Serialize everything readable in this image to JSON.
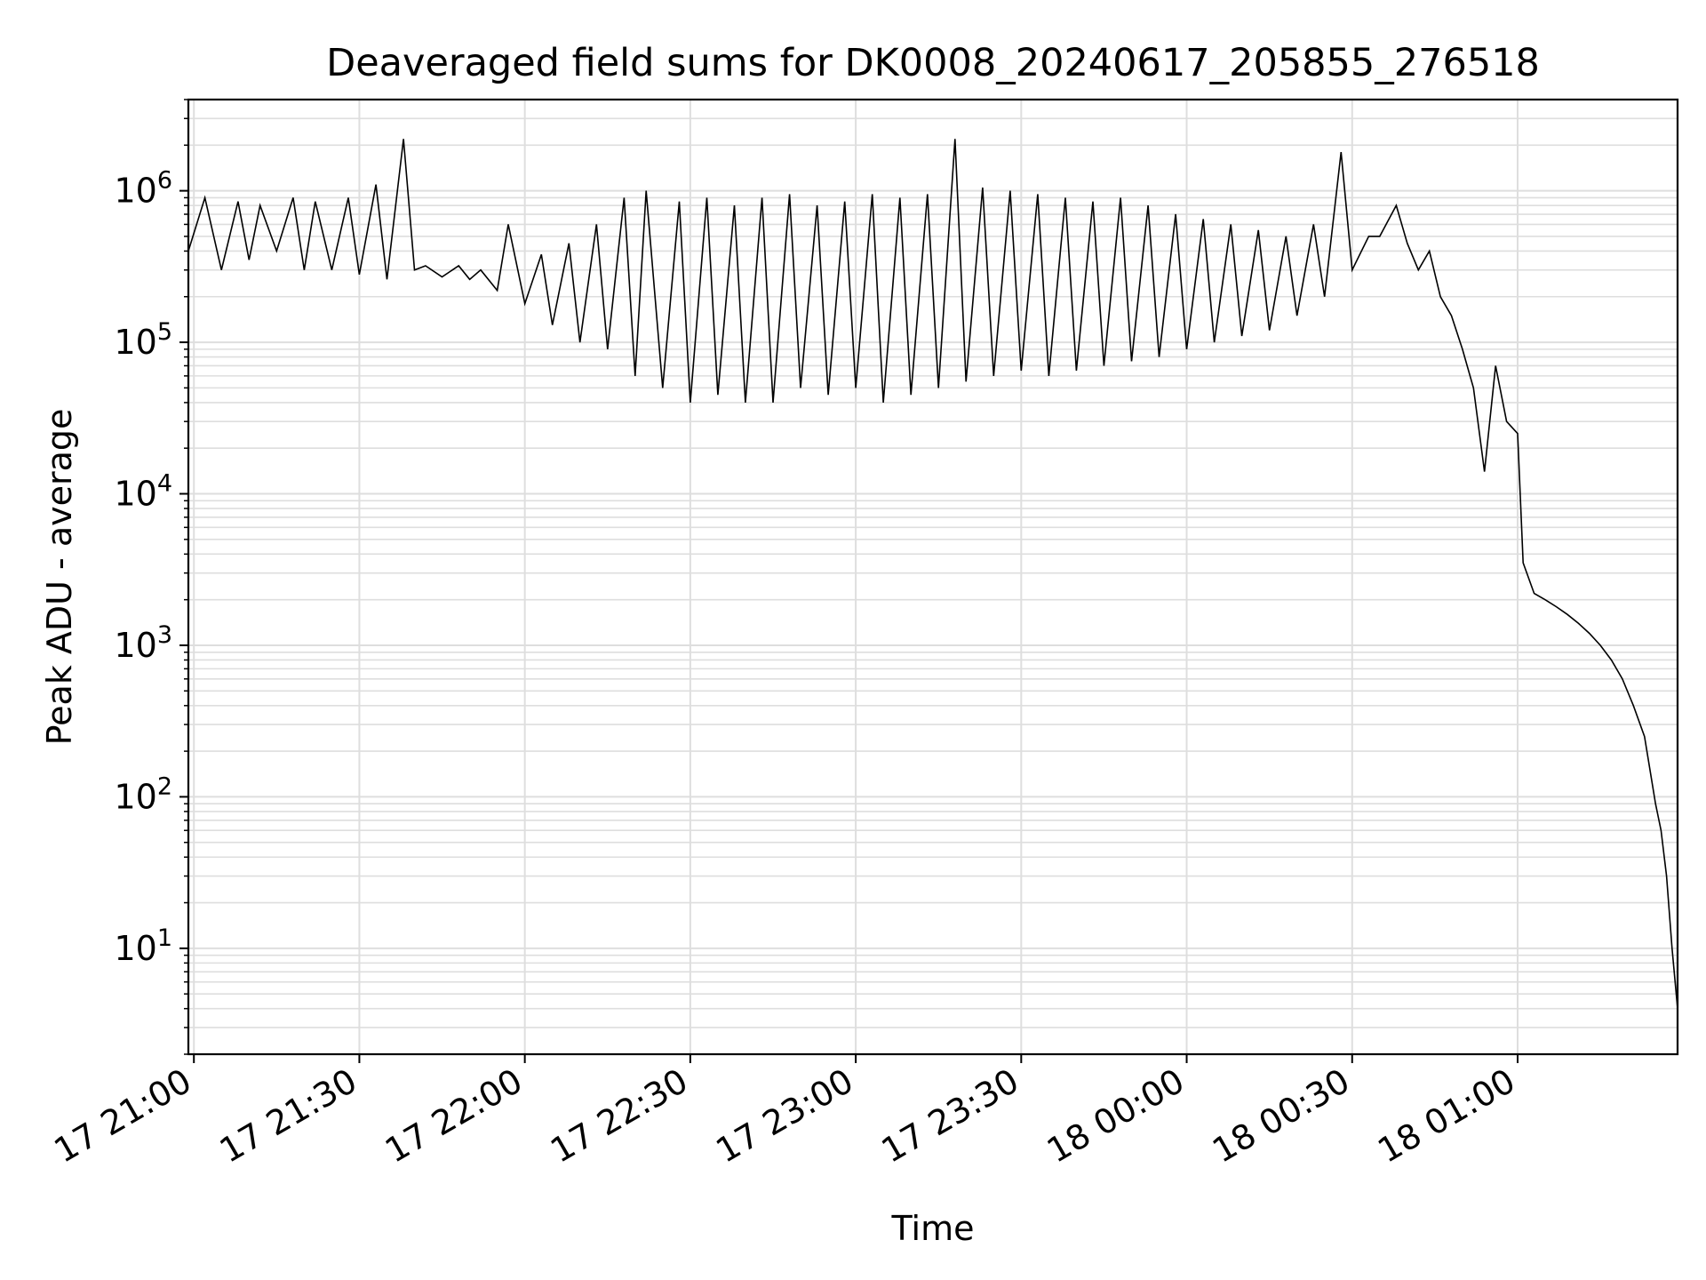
{
  "chart_data": {
    "type": "line",
    "title": "Deaveraged field sums for DK0008_20240617_205855_276518",
    "xlabel": "Time",
    "ylabel": "Peak ADU - average",
    "yscale": "log",
    "ylim": [
      2,
      4000000
    ],
    "xlim": [
      "17 20:59",
      "18 01:29"
    ],
    "grid": true,
    "x_ticks": [
      "17 21:00",
      "17 21:30",
      "17 22:00",
      "17 22:30",
      "17 23:00",
      "17 23:30",
      "18 00:00",
      "18 00:30",
      "18 01:00"
    ],
    "y_ticks": [
      {
        "base": "10",
        "exp": "1",
        "value": 10
      },
      {
        "base": "10",
        "exp": "2",
        "value": 100
      },
      {
        "base": "10",
        "exp": "3",
        "value": 1000
      },
      {
        "base": "10",
        "exp": "4",
        "value": 10000
      },
      {
        "base": "10",
        "exp": "5",
        "value": 100000
      },
      {
        "base": "10",
        "exp": "6",
        "value": 1000000
      }
    ],
    "series": [
      {
        "color": "#000000",
        "x": [
          "17 20:59",
          "17 21:02",
          "17 21:05",
          "17 21:08",
          "17 21:10",
          "17 21:12",
          "17 21:15",
          "17 21:18",
          "17 21:20",
          "17 21:22",
          "17 21:25",
          "17 21:28",
          "17 21:30",
          "17 21:33",
          "17 21:35",
          "17 21:38",
          "17 21:40",
          "17 21:42",
          "17 21:45",
          "17 21:48",
          "17 21:50",
          "17 21:52",
          "17 21:55",
          "17 21:57",
          "17 22:00",
          "17 22:03",
          "17 22:05",
          "17 22:08",
          "17 22:10",
          "17 22:13",
          "17 22:15",
          "17 22:18",
          "17 22:20",
          "17 22:22",
          "17 22:25",
          "17 22:28",
          "17 22:30",
          "17 22:33",
          "17 22:35",
          "17 22:38",
          "17 22:40",
          "17 22:43",
          "17 22:45",
          "17 22:48",
          "17 22:50",
          "17 22:53",
          "17 22:55",
          "17 22:58",
          "17 23:00",
          "17 23:03",
          "17 23:05",
          "17 23:08",
          "17 23:10",
          "17 23:13",
          "17 23:15",
          "17 23:18",
          "17 23:20",
          "17 23:23",
          "17 23:25",
          "17 23:28",
          "17 23:30",
          "17 23:33",
          "17 23:35",
          "17 23:38",
          "17 23:40",
          "17 23:43",
          "17 23:45",
          "17 23:48",
          "17 23:50",
          "17 23:53",
          "17 23:55",
          "17 23:58",
          "18 00:00",
          "18 00:03",
          "18 00:05",
          "18 00:08",
          "18 00:10",
          "18 00:13",
          "18 00:15",
          "18 00:18",
          "18 00:20",
          "18 00:23",
          "18 00:25",
          "18 00:28",
          "18 00:30",
          "18 00:33",
          "18 00:35",
          "18 00:38",
          "18 00:40",
          "18 00:42",
          "18 00:44",
          "18 00:46",
          "18 00:48",
          "18 00:50",
          "18 00:52",
          "18 00:54",
          "18 00:56",
          "18 00:58",
          "18 01:00",
          "18 01:01",
          "18 01:03",
          "18 01:05",
          "18 01:07",
          "18 01:09",
          "18 01:11",
          "18 01:13",
          "18 01:15",
          "18 01:17",
          "18 01:19",
          "18 01:21",
          "18 01:23",
          "18 01:24",
          "18 01:25",
          "18 01:26",
          "18 01:27",
          "18 01:28",
          "18 01:29"
        ],
        "y": [
          400000,
          900000,
          300000,
          850000,
          350000,
          800000,
          400000,
          900000,
          300000,
          850000,
          300000,
          900000,
          280000,
          1100000,
          260000,
          2200000,
          300000,
          320000,
          270000,
          320000,
          260000,
          300000,
          220000,
          600000,
          180000,
          380000,
          130000,
          450000,
          100000,
          600000,
          90000,
          900000,
          60000,
          1000000,
          50000,
          850000,
          40000,
          900000,
          45000,
          800000,
          40000,
          900000,
          40000,
          950000,
          50000,
          800000,
          45000,
          850000,
          50000,
          950000,
          40000,
          900000,
          45000,
          950000,
          50000,
          2200000,
          55000,
          1050000,
          60000,
          1000000,
          65000,
          950000,
          60000,
          900000,
          65000,
          850000,
          70000,
          900000,
          75000,
          800000,
          80000,
          700000,
          90000,
          650000,
          100000,
          600000,
          110000,
          550000,
          120000,
          500000,
          150000,
          600000,
          200000,
          1800000,
          300000,
          500000,
          500000,
          800000,
          450000,
          300000,
          400000,
          200000,
          150000,
          90000,
          50000,
          14000,
          70000,
          30000,
          25000,
          3500,
          2200,
          2000,
          1800,
          1600,
          1400,
          1200,
          1000,
          800,
          600,
          400,
          250,
          150,
          90,
          60,
          30,
          10,
          4
        ]
      }
    ]
  }
}
